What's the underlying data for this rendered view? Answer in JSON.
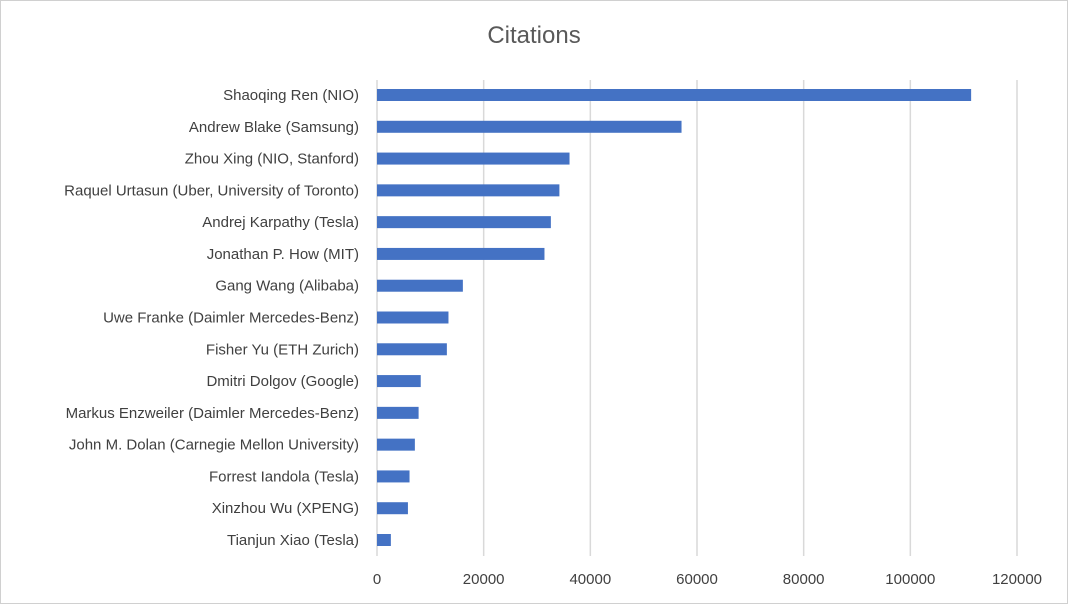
{
  "chart_data": {
    "type": "bar",
    "orientation": "horizontal",
    "title": "Citations",
    "xlabel": "",
    "ylabel": "",
    "xlim": [
      0,
      120000
    ],
    "xticks": [
      0,
      20000,
      40000,
      60000,
      80000,
      100000,
      120000
    ],
    "grid": "vertical",
    "legend": "none",
    "bar_color": "#4472C4",
    "categories": [
      "Shaoqing Ren (NIO)",
      "Andrew Blake (Samsung)",
      "Zhou Xing (NIO, Stanford)",
      "Raquel Urtasun (Uber, University of Toronto)",
      "Andrej Karpathy (Tesla)",
      "Jonathan P. How (MIT)",
      "Gang Wang (Alibaba)",
      "Uwe Franke (Daimler Mercedes-Benz)",
      "Fisher Yu (ETH Zurich)",
      "Dmitri Dolgov (Google)",
      "Markus Enzweiler (Daimler Mercedes-Benz)",
      "John M. Dolan (Carnegie Mellon University)",
      "Forrest Iandola (Tesla)",
      "Xinzhou Wu (XPENG)",
      "Tianjun Xiao (Tesla)"
    ],
    "values": [
      111400,
      57100,
      36100,
      34200,
      32600,
      31400,
      16100,
      13400,
      13100,
      8200,
      7800,
      7100,
      6100,
      5800,
      2600
    ]
  }
}
